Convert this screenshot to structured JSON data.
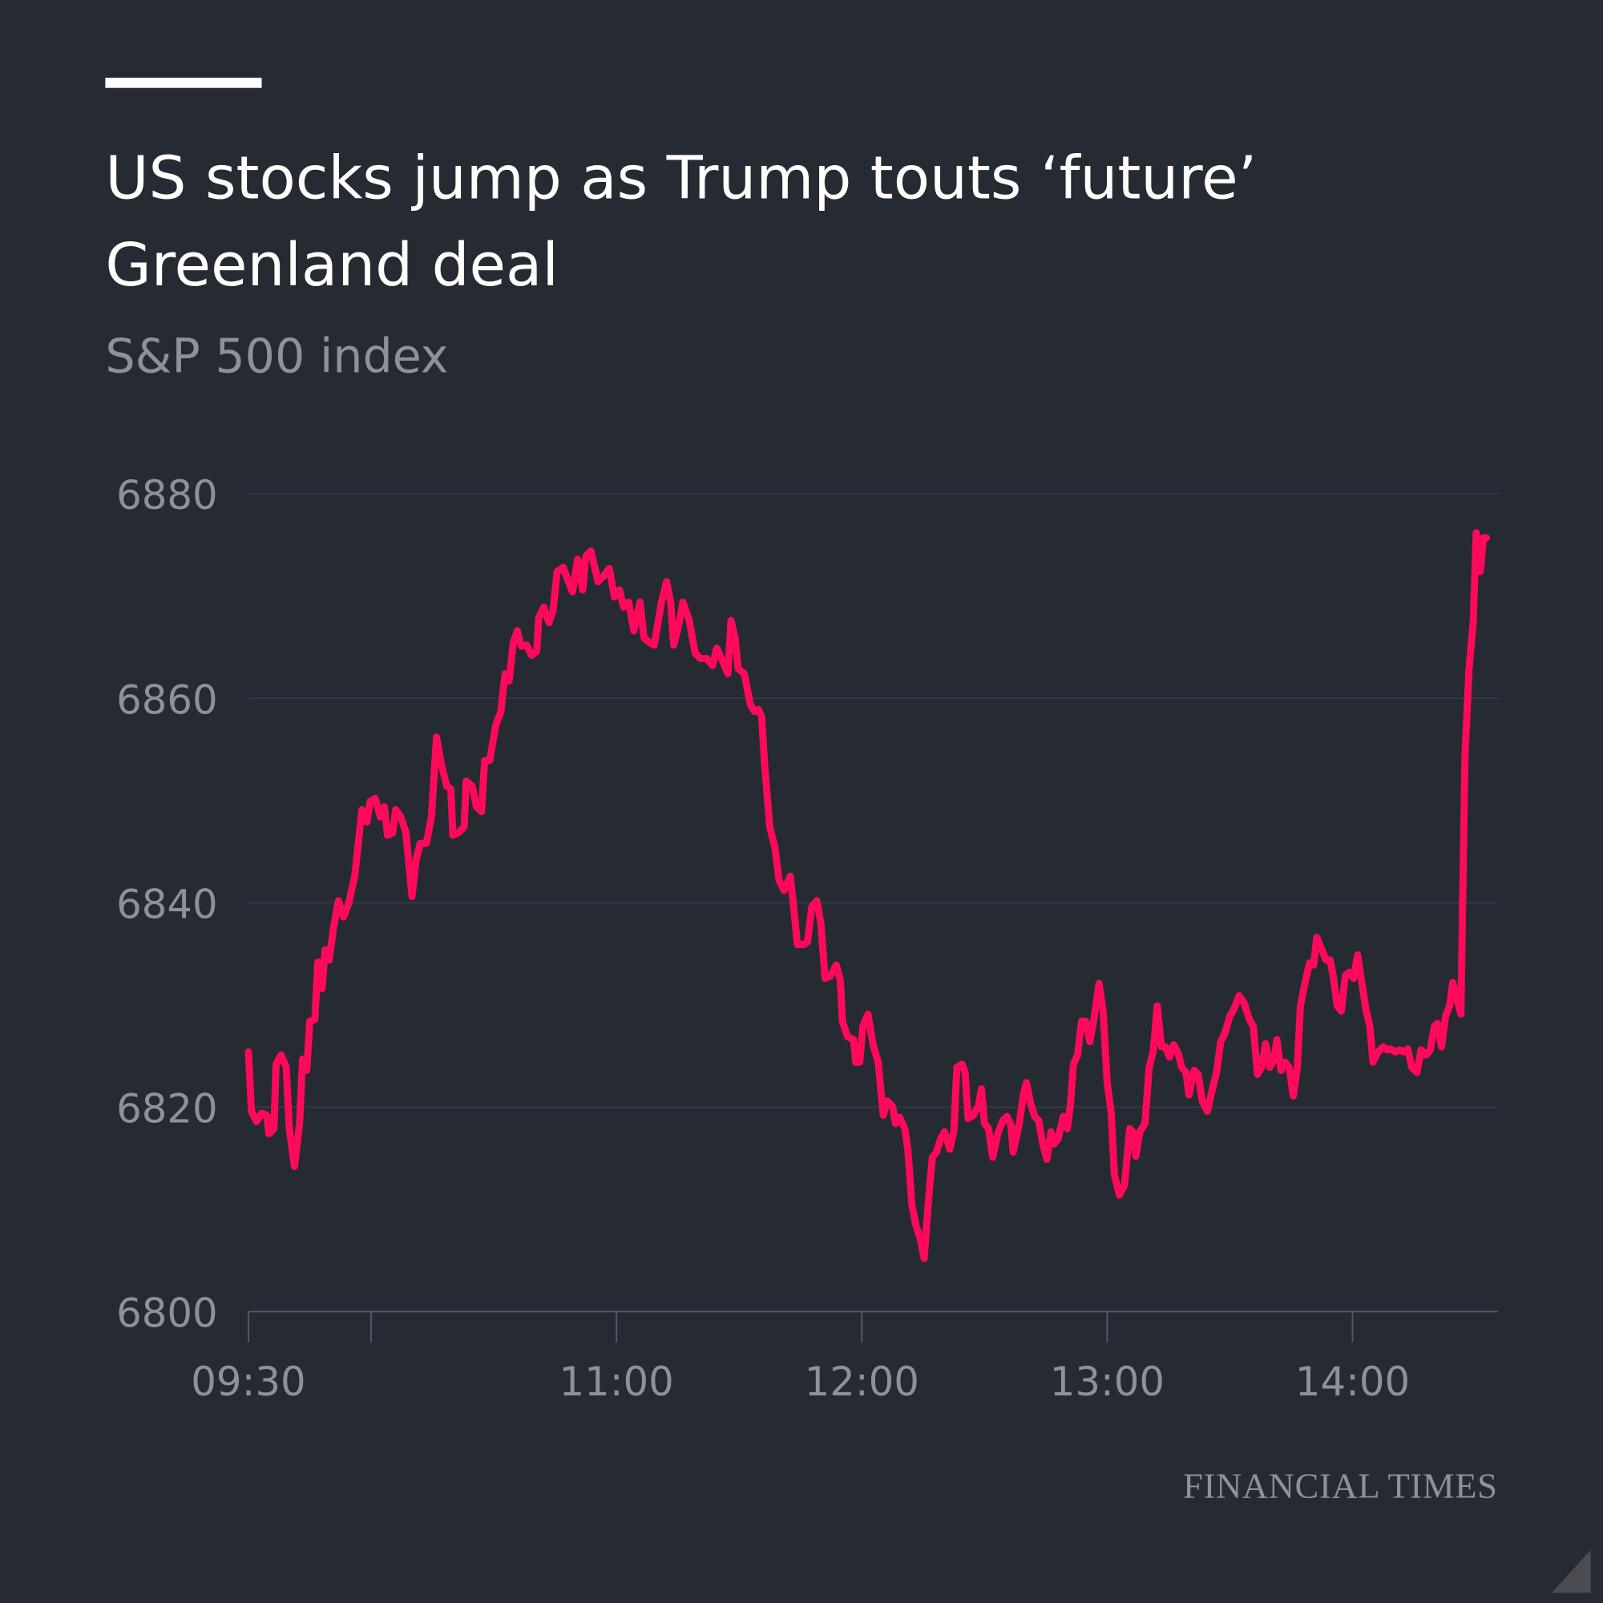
{
  "header": {
    "title_lines": [
      "US stocks jump as Trump touts ‘future’",
      "Greenland deal"
    ],
    "subtitle": "S&P 500 index"
  },
  "footer": {
    "brand": "FINANCIAL TIMES"
  },
  "colors": {
    "background": "#262a33",
    "line": "#ff0a5a",
    "text_muted": "#8f9199"
  },
  "chart_data": {
    "type": "line",
    "title": "US stocks jump as Trump touts ‘future’ Greenland deal",
    "subtitle": "S&P 500 index",
    "xlabel": "",
    "ylabel": "",
    "x_unit": "minutes after 09:30",
    "xlim": [
      0,
      302.75
    ],
    "ylim": [
      6800,
      6880
    ],
    "yticks": [
      6800,
      6820,
      6840,
      6860,
      6880
    ],
    "ytick_labels": [
      "6800",
      "6820",
      "6840",
      "6860",
      "6880"
    ],
    "xticks": [
      0,
      30,
      90,
      150,
      210,
      270
    ],
    "xtick_labels": [
      "09:30",
      "",
      "11:00",
      "12:00",
      "13:00",
      "14:00"
    ],
    "grid": true,
    "series": [
      {
        "name": "S&P 500",
        "points": [
          [
            0,
            6825.4
          ],
          [
            0.75,
            6819.6
          ],
          [
            2,
            6818.6
          ],
          [
            3.25,
            6819.4
          ],
          [
            4.5,
            6819.2
          ],
          [
            5,
            6817.4
          ],
          [
            6.25,
            6817.9
          ],
          [
            6.75,
            6824.2
          ],
          [
            8,
            6825.1
          ],
          [
            9.25,
            6823.9
          ],
          [
            10,
            6817.9
          ],
          [
            11.25,
            6814.2
          ],
          [
            12.5,
            6818.4
          ],
          [
            13.25,
            6824.7
          ],
          [
            14.25,
            6823.6
          ],
          [
            15,
            6828.4
          ],
          [
            16.25,
            6828.6
          ],
          [
            17,
            6834.2
          ],
          [
            18,
            6831.6
          ],
          [
            18.75,
            6835.4
          ],
          [
            19.75,
            6834.4
          ],
          [
            20.75,
            6837.4
          ],
          [
            22,
            6840.2
          ],
          [
            23.25,
            6838.6
          ],
          [
            24.5,
            6839.9
          ],
          [
            26,
            6842.6
          ],
          [
            27.75,
            6849.1
          ],
          [
            29,
            6847.9
          ],
          [
            29.75,
            6849.9
          ],
          [
            31,
            6850.2
          ],
          [
            32.25,
            6848.4
          ],
          [
            33.25,
            6849.4
          ],
          [
            34,
            6846.6
          ],
          [
            35.25,
            6846.8
          ],
          [
            36,
            6849.1
          ],
          [
            37.25,
            6848.4
          ],
          [
            38.5,
            6846.9
          ],
          [
            40,
            6840.6
          ],
          [
            41,
            6844.2
          ],
          [
            42,
            6845.8
          ],
          [
            43.5,
            6845.8
          ],
          [
            44.75,
            6848.4
          ],
          [
            46,
            6856.2
          ],
          [
            47.25,
            6853.4
          ],
          [
            48.5,
            6851.4
          ],
          [
            49.5,
            6851.1
          ],
          [
            50,
            6846.6
          ],
          [
            51.5,
            6846.9
          ],
          [
            52.75,
            6847.4
          ],
          [
            53.25,
            6851.9
          ],
          [
            54.75,
            6851.4
          ],
          [
            55.75,
            6849.4
          ],
          [
            57,
            6848.9
          ],
          [
            57.75,
            6853.9
          ],
          [
            59,
            6853.9
          ],
          [
            60.5,
            6857.4
          ],
          [
            61.75,
            6858.7
          ],
          [
            62.75,
            6862.4
          ],
          [
            63.75,
            6861.7
          ],
          [
            64.75,
            6865.4
          ],
          [
            65.75,
            6866.6
          ],
          [
            66.75,
            6865.1
          ],
          [
            68,
            6865.2
          ],
          [
            69.25,
            6864.2
          ],
          [
            70.5,
            6864.6
          ],
          [
            71,
            6867.9
          ],
          [
            72.25,
            6868.9
          ],
          [
            73.5,
            6867.4
          ],
          [
            74.5,
            6868.6
          ],
          [
            75.5,
            6872.4
          ],
          [
            77,
            6872.8
          ],
          [
            78.25,
            6871.4
          ],
          [
            79.25,
            6870.4
          ],
          [
            80.5,
            6873.6
          ],
          [
            81.75,
            6870.6
          ],
          [
            82.5,
            6873.9
          ],
          [
            83.75,
            6874.4
          ],
          [
            85.5,
            6871.4
          ],
          [
            86.75,
            6871.9
          ],
          [
            88.25,
            6872.7
          ],
          [
            89.5,
            6869.9
          ],
          [
            90.75,
            6870.6
          ],
          [
            91.75,
            6868.9
          ],
          [
            93,
            6869.4
          ],
          [
            94.25,
            6866.6
          ],
          [
            95.75,
            6869.4
          ],
          [
            96.75,
            6865.9
          ],
          [
            98.25,
            6865.4
          ],
          [
            99.25,
            6865.2
          ],
          [
            101,
            6869.4
          ],
          [
            102.25,
            6871.4
          ],
          [
            103.25,
            6869.4
          ],
          [
            104,
            6865.2
          ],
          [
            105.25,
            6867.2
          ],
          [
            106.25,
            6869.4
          ],
          [
            107.75,
            6867.7
          ],
          [
            109.25,
            6864.4
          ],
          [
            110.5,
            6863.9
          ],
          [
            112,
            6863.9
          ],
          [
            113.5,
            6863.2
          ],
          [
            114.5,
            6864.9
          ],
          [
            116,
            6863.6
          ],
          [
            117.25,
            6862.4
          ],
          [
            118,
            6867.6
          ],
          [
            119,
            6865.9
          ],
          [
            119.75,
            6862.9
          ],
          [
            121.25,
            6862.4
          ],
          [
            122.75,
            6859.4
          ],
          [
            123.75,
            6858.7
          ],
          [
            124.75,
            6858.9
          ],
          [
            125.5,
            6858.2
          ],
          [
            126.25,
            6853.4
          ],
          [
            127.5,
            6847.4
          ],
          [
            128.75,
            6845.4
          ],
          [
            129.75,
            6842.2
          ],
          [
            131,
            6841.2
          ],
          [
            132.5,
            6842.6
          ],
          [
            133.25,
            6839.9
          ],
          [
            134.25,
            6835.9
          ],
          [
            135.75,
            6835.9
          ],
          [
            136.75,
            6836.2
          ],
          [
            137.75,
            6839.6
          ],
          [
            139,
            6840.2
          ],
          [
            140,
            6837.9
          ],
          [
            141,
            6832.6
          ],
          [
            142.25,
            6832.8
          ],
          [
            143.75,
            6833.9
          ],
          [
            144.75,
            6832.4
          ],
          [
            145.25,
            6828.4
          ],
          [
            146.5,
            6826.9
          ],
          [
            148,
            6826.6
          ],
          [
            148.5,
            6824.4
          ],
          [
            149.5,
            6824.4
          ],
          [
            150.25,
            6827.9
          ],
          [
            151.5,
            6829.1
          ],
          [
            152.75,
            6826.1
          ],
          [
            154,
            6824.4
          ],
          [
            155.25,
            6819.2
          ],
          [
            156.25,
            6820.6
          ],
          [
            157.5,
            6820.1
          ],
          [
            158.25,
            6818.4
          ],
          [
            159.25,
            6819
          ],
          [
            160.5,
            6817.9
          ],
          [
            161.25,
            6815.9
          ],
          [
            162.25,
            6810.4
          ],
          [
            163.25,
            6808.4
          ],
          [
            164.25,
            6807.2
          ],
          [
            165.25,
            6805.2
          ],
          [
            166.5,
            6811.9
          ],
          [
            167.25,
            6815.1
          ],
          [
            168.25,
            6815.6
          ],
          [
            169.25,
            6816.9
          ],
          [
            170.25,
            6817.6
          ],
          [
            171.5,
            6815.9
          ],
          [
            172.5,
            6817.6
          ],
          [
            173.25,
            6823.9
          ],
          [
            174.5,
            6824.2
          ],
          [
            175.25,
            6823.4
          ],
          [
            176,
            6818.9
          ],
          [
            177.25,
            6819.2
          ],
          [
            178.5,
            6820.1
          ],
          [
            179.25,
            6821.8
          ],
          [
            180,
            6818.4
          ],
          [
            181,
            6817.9
          ],
          [
            182,
            6815.1
          ],
          [
            183.25,
            6817.4
          ],
          [
            184.5,
            6818.7
          ],
          [
            185.5,
            6819.1
          ],
          [
            186.5,
            6818.2
          ],
          [
            187,
            6815.6
          ],
          [
            188.5,
            6818.4
          ],
          [
            189.5,
            6821.2
          ],
          [
            190.25,
            6822.4
          ],
          [
            191.25,
            6820.4
          ],
          [
            192.25,
            6819.1
          ],
          [
            193.25,
            6818.7
          ],
          [
            194.25,
            6816.4
          ],
          [
            195.25,
            6814.9
          ],
          [
            196.25,
            6817.6
          ],
          [
            197,
            6816.4
          ],
          [
            198,
            6816.9
          ],
          [
            199.25,
            6819.1
          ],
          [
            200.25,
            6817.9
          ],
          [
            201,
            6820.2
          ],
          [
            201.75,
            6824.2
          ],
          [
            202.75,
            6825.1
          ],
          [
            203.75,
            6828.4
          ],
          [
            204.75,
            6828.4
          ],
          [
            205.75,
            6826.4
          ],
          [
            206.75,
            6828.6
          ],
          [
            208,
            6832.1
          ],
          [
            209,
            6829.4
          ],
          [
            210,
            6822.4
          ],
          [
            211,
            6819.4
          ],
          [
            211.75,
            6813.4
          ],
          [
            213,
            6811.4
          ],
          [
            214.25,
            6812.4
          ],
          [
            215.5,
            6817.9
          ],
          [
            216.25,
            6817.6
          ],
          [
            217,
            6815.2
          ],
          [
            218,
            6817.6
          ],
          [
            219.25,
            6818.4
          ],
          [
            220.25,
            6823.9
          ],
          [
            221.25,
            6825.4
          ],
          [
            222.25,
            6829.9
          ],
          [
            223.25,
            6825.9
          ],
          [
            224.25,
            6825.9
          ],
          [
            225.25,
            6824.9
          ],
          [
            226.25,
            6826.1
          ],
          [
            227.25,
            6825.4
          ],
          [
            228.25,
            6823.9
          ],
          [
            229.25,
            6823.4
          ],
          [
            230,
            6821.2
          ],
          [
            231.25,
            6823.6
          ],
          [
            232.25,
            6823.2
          ],
          [
            233.25,
            6820.6
          ],
          [
            234.5,
            6819.6
          ],
          [
            235.5,
            6821.4
          ],
          [
            236.75,
            6823.4
          ],
          [
            237.75,
            6826.4
          ],
          [
            238.75,
            6827.2
          ],
          [
            240,
            6828.9
          ],
          [
            241,
            6829.6
          ],
          [
            242.25,
            6830.9
          ],
          [
            243.5,
            6830.2
          ],
          [
            244.75,
            6828.6
          ],
          [
            245.75,
            6827.9
          ],
          [
            246.75,
            6823.2
          ],
          [
            247.75,
            6823.9
          ],
          [
            248.75,
            6826.2
          ],
          [
            249.75,
            6823.9
          ],
          [
            250.75,
            6824.6
          ],
          [
            251.5,
            6826.6
          ],
          [
            252.5,
            6823.6
          ],
          [
            253.5,
            6824.4
          ],
          [
            254.5,
            6823.9
          ],
          [
            255.5,
            6821.1
          ],
          [
            256.5,
            6823.9
          ],
          [
            257.25,
            6829.9
          ],
          [
            258.5,
            6832.4
          ],
          [
            259.5,
            6834.1
          ],
          [
            260.5,
            6833.9
          ],
          [
            261.25,
            6836.6
          ],
          [
            262.5,
            6835.4
          ],
          [
            263.5,
            6834.4
          ],
          [
            264.5,
            6834.4
          ],
          [
            265.25,
            6832.9
          ],
          [
            266.25,
            6829.9
          ],
          [
            267.25,
            6829.4
          ],
          [
            268.25,
            6832.9
          ],
          [
            269.25,
            6833.2
          ],
          [
            270.25,
            6832.6
          ],
          [
            271.25,
            6834.9
          ],
          [
            272.25,
            6832.2
          ],
          [
            273.25,
            6829.6
          ],
          [
            274.25,
            6827.9
          ],
          [
            275,
            6824.4
          ],
          [
            276.25,
            6825.4
          ],
          [
            277.5,
            6825.9
          ],
          [
            278.5,
            6825.6
          ],
          [
            279.25,
            6825.7
          ],
          [
            280.5,
            6825.4
          ],
          [
            281.5,
            6825.6
          ],
          [
            282.5,
            6825.4
          ],
          [
            283.5,
            6825.7
          ],
          [
            284.5,
            6823.9
          ],
          [
            285.75,
            6823.4
          ],
          [
            286.75,
            6825.6
          ],
          [
            288,
            6825.1
          ],
          [
            289,
            6825.6
          ],
          [
            290,
            6827.9
          ],
          [
            290.75,
            6828.2
          ],
          [
            291.75,
            6825.9
          ],
          [
            292.75,
            6828.9
          ],
          [
            293.75,
            6829.9
          ],
          [
            294.5,
            6832.2
          ],
          [
            295.5,
            6830.6
          ],
          [
            296.5,
            6829.1
          ],
          [
            297.5,
            6854.4
          ],
          [
            298.5,
            6862.9
          ],
          [
            299.5,
            6867.4
          ],
          [
            300.25,
            6876.2
          ],
          [
            301.25,
            6872.4
          ],
          [
            302,
            6875.7
          ],
          [
            302.75,
            6875.7
          ]
        ]
      }
    ]
  }
}
